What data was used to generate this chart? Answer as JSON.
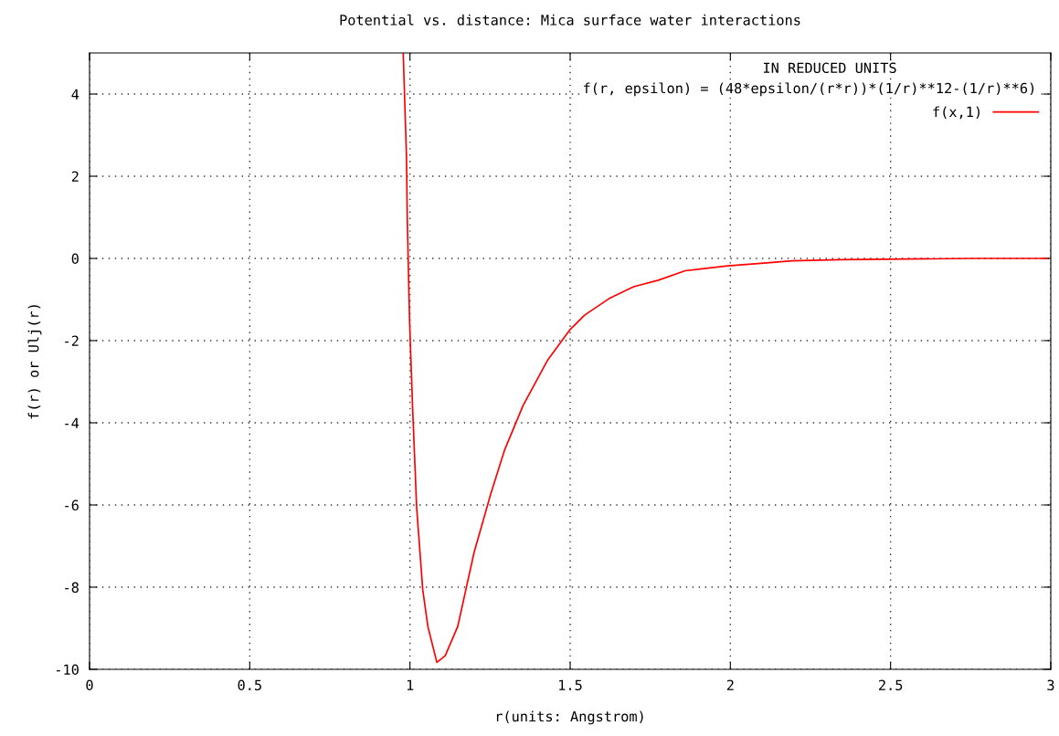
{
  "chart_data": {
    "type": "line",
    "title": "Potential vs. distance: Mica surface water interactions",
    "xlabel": "r(units: Angstrom)",
    "ylabel": "f(r) or Ulj(r)",
    "annotations": [
      "IN REDUCED UNITS",
      "f(r, epsilon) = (48*epsilon/(r*r))*(1/r)**12-(1/r)**6)"
    ],
    "series": [
      {
        "name": "f(x,1)",
        "color": "#ff0000",
        "x": [
          0.979,
          0.989,
          0.992,
          0.999,
          1.008,
          1.021,
          1.04,
          1.056,
          1.084,
          1.11,
          1.149,
          1.2,
          1.251,
          1.295,
          1.353,
          1.43,
          1.5,
          1.545,
          1.621,
          1.698,
          1.775,
          1.859,
          1.992,
          2.096,
          2.192,
          2.344,
          2.762,
          2.99
        ],
        "values": [
          5.0,
          2.51,
          0.82,
          -1.58,
          -3.58,
          -6.07,
          -8.07,
          -8.96,
          -9.83,
          -9.67,
          -8.96,
          -7.16,
          -5.76,
          -4.67,
          -3.58,
          -2.47,
          -1.73,
          -1.38,
          -0.98,
          -0.69,
          -0.53,
          -0.3,
          -0.18,
          -0.12,
          -0.06,
          -0.03,
          0,
          0
        ]
      }
    ],
    "xlim": [
      0,
      3
    ],
    "xticks": [
      0,
      0.5,
      1,
      1.5,
      2,
      2.5,
      3
    ],
    "ylim": [
      -10,
      5
    ],
    "yticks": [
      -10,
      -8,
      -6,
      -4,
      -2,
      0,
      2,
      4
    ],
    "grid": true,
    "legend": "top right",
    "line_style": "solid",
    "marker": "none"
  }
}
